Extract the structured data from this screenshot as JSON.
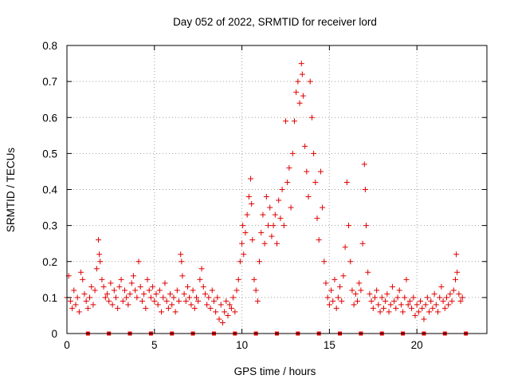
{
  "chart_data": {
    "type": "scatter",
    "title": "Day 052 of 2022, SRMTID for receiver lord",
    "xlabel": "GPS time / hours",
    "ylabel": "SRMTID / TECUs",
    "xlim": [
      0,
      24
    ],
    "ylim": [
      0,
      0.8
    ],
    "xticks": [
      0,
      5,
      10,
      15,
      20
    ],
    "xtick_labels": [
      "0",
      "5",
      "10",
      "15",
      "20"
    ],
    "yticks": [
      0,
      0.1,
      0.2,
      0.3,
      0.4,
      0.5,
      0.6,
      0.7,
      0.8
    ],
    "ytick_labels": [
      "0",
      "0.1",
      "0.2",
      "0.3",
      "0.4",
      "0.5",
      "0.6",
      "0.7",
      "0.8"
    ],
    "grid": true,
    "marker": "plus",
    "color": "#e00000",
    "series": [
      {
        "name": "SRMTID",
        "points": [
          [
            0.0,
            0.1
          ],
          [
            0.1,
            0.16
          ],
          [
            0.2,
            0.09
          ],
          [
            0.3,
            0.07
          ],
          [
            0.4,
            0.12
          ],
          [
            0.5,
            0.08
          ],
          [
            0.6,
            0.1
          ],
          [
            0.7,
            0.06
          ],
          [
            0.8,
            0.17
          ],
          [
            0.9,
            0.15
          ],
          [
            1.0,
            0.11
          ],
          [
            1.1,
            0.09
          ],
          [
            1.2,
            0.07
          ],
          [
            1.3,
            0.1
          ],
          [
            1.4,
            0.13
          ],
          [
            1.5,
            0.08
          ],
          [
            1.6,
            0.12
          ],
          [
            1.7,
            0.18
          ],
          [
            1.8,
            0.26
          ],
          [
            1.85,
            0.22
          ],
          [
            1.9,
            0.2
          ],
          [
            2.0,
            0.15
          ],
          [
            2.1,
            0.13
          ],
          [
            2.2,
            0.1
          ],
          [
            2.3,
            0.11
          ],
          [
            2.4,
            0.09
          ],
          [
            2.5,
            0.14
          ],
          [
            2.6,
            0.08
          ],
          [
            2.7,
            0.12
          ],
          [
            2.8,
            0.1
          ],
          [
            2.9,
            0.07
          ],
          [
            3.0,
            0.13
          ],
          [
            3.1,
            0.15
          ],
          [
            3.2,
            0.09
          ],
          [
            3.3,
            0.12
          ],
          [
            3.4,
            0.1
          ],
          [
            3.5,
            0.08
          ],
          [
            3.6,
            0.11
          ],
          [
            3.7,
            0.14
          ],
          [
            3.8,
            0.16
          ],
          [
            3.9,
            0.12
          ],
          [
            4.0,
            0.1
          ],
          [
            4.1,
            0.2
          ],
          [
            4.2,
            0.13
          ],
          [
            4.3,
            0.09
          ],
          [
            4.4,
            0.11
          ],
          [
            4.5,
            0.07
          ],
          [
            4.6,
            0.15
          ],
          [
            4.7,
            0.12
          ],
          [
            4.8,
            0.1
          ],
          [
            4.9,
            0.13
          ],
          [
            5.0,
            0.09
          ],
          [
            5.1,
            0.11
          ],
          [
            5.2,
            0.08
          ],
          [
            5.3,
            0.12
          ],
          [
            5.4,
            0.06
          ],
          [
            5.5,
            0.1
          ],
          [
            5.6,
            0.14
          ],
          [
            5.7,
            0.09
          ],
          [
            5.8,
            0.07
          ],
          [
            5.9,
            0.11
          ],
          [
            6.0,
            0.08
          ],
          [
            6.1,
            0.1
          ],
          [
            6.2,
            0.06
          ],
          [
            6.3,
            0.12
          ],
          [
            6.4,
            0.09
          ],
          [
            6.5,
            0.22
          ],
          [
            6.55,
            0.2
          ],
          [
            6.6,
            0.16
          ],
          [
            6.7,
            0.11
          ],
          [
            6.8,
            0.09
          ],
          [
            6.9,
            0.13
          ],
          [
            7.0,
            0.1
          ],
          [
            7.1,
            0.08
          ],
          [
            7.2,
            0.12
          ],
          [
            7.3,
            0.07
          ],
          [
            7.4,
            0.1
          ],
          [
            7.5,
            0.09
          ],
          [
            7.6,
            0.15
          ],
          [
            7.7,
            0.18
          ],
          [
            7.8,
            0.13
          ],
          [
            7.9,
            0.11
          ],
          [
            8.0,
            0.08
          ],
          [
            8.1,
            0.1
          ],
          [
            8.2,
            0.07
          ],
          [
            8.3,
            0.12
          ],
          [
            8.4,
            0.09
          ],
          [
            8.5,
            0.06
          ],
          [
            8.6,
            0.1
          ],
          [
            8.7,
            0.04
          ],
          [
            8.8,
            0.08
          ],
          [
            8.9,
            0.03
          ],
          [
            9.0,
            0.06
          ],
          [
            9.1,
            0.09
          ],
          [
            9.2,
            0.05
          ],
          [
            9.3,
            0.08
          ],
          [
            9.4,
            0.07
          ],
          [
            9.5,
            0.1
          ],
          [
            9.6,
            0.06
          ],
          [
            9.7,
            0.12
          ],
          [
            9.8,
            0.15
          ],
          [
            9.9,
            0.2
          ],
          [
            10.0,
            0.25
          ],
          [
            10.05,
            0.3
          ],
          [
            10.1,
            0.22
          ],
          [
            10.2,
            0.28
          ],
          [
            10.3,
            0.33
          ],
          [
            10.4,
            0.38
          ],
          [
            10.5,
            0.43
          ],
          [
            10.55,
            0.36
          ],
          [
            10.6,
            0.26
          ],
          [
            10.7,
            0.15
          ],
          [
            10.8,
            0.12
          ],
          [
            10.9,
            0.09
          ],
          [
            11.0,
            0.2
          ],
          [
            11.1,
            0.28
          ],
          [
            11.2,
            0.33
          ],
          [
            11.3,
            0.25
          ],
          [
            11.4,
            0.38
          ],
          [
            11.5,
            0.3
          ],
          [
            11.6,
            0.35
          ],
          [
            11.7,
            0.27
          ],
          [
            11.8,
            0.3
          ],
          [
            11.9,
            0.33
          ],
          [
            12.0,
            0.25
          ],
          [
            12.1,
            0.37
          ],
          [
            12.2,
            0.32
          ],
          [
            12.3,
            0.4
          ],
          [
            12.4,
            0.3
          ],
          [
            12.5,
            0.59
          ],
          [
            12.6,
            0.42
          ],
          [
            12.7,
            0.46
          ],
          [
            12.8,
            0.35
          ],
          [
            12.9,
            0.5
          ],
          [
            13.0,
            0.59
          ],
          [
            13.1,
            0.67
          ],
          [
            13.2,
            0.7
          ],
          [
            13.3,
            0.64
          ],
          [
            13.4,
            0.75
          ],
          [
            13.45,
            0.72
          ],
          [
            13.5,
            0.66
          ],
          [
            13.6,
            0.52
          ],
          [
            13.7,
            0.45
          ],
          [
            13.8,
            0.38
          ],
          [
            13.9,
            0.7
          ],
          [
            14.0,
            0.6
          ],
          [
            14.1,
            0.5
          ],
          [
            14.2,
            0.42
          ],
          [
            14.3,
            0.32
          ],
          [
            14.4,
            0.26
          ],
          [
            14.5,
            0.45
          ],
          [
            14.6,
            0.35
          ],
          [
            14.7,
            0.2
          ],
          [
            14.8,
            0.14
          ],
          [
            14.9,
            0.1
          ],
          [
            15.0,
            0.08
          ],
          [
            15.1,
            0.12
          ],
          [
            15.2,
            0.09
          ],
          [
            15.3,
            0.15
          ],
          [
            15.4,
            0.07
          ],
          [
            15.5,
            0.1
          ],
          [
            15.6,
            0.13
          ],
          [
            15.7,
            0.09
          ],
          [
            15.8,
            0.16
          ],
          [
            15.9,
            0.24
          ],
          [
            16.0,
            0.42
          ],
          [
            16.1,
            0.3
          ],
          [
            16.2,
            0.2
          ],
          [
            16.3,
            0.12
          ],
          [
            16.4,
            0.08
          ],
          [
            16.5,
            0.11
          ],
          [
            16.6,
            0.09
          ],
          [
            16.7,
            0.14
          ],
          [
            16.8,
            0.12
          ],
          [
            16.9,
            0.25
          ],
          [
            17.0,
            0.47
          ],
          [
            17.05,
            0.4
          ],
          [
            17.1,
            0.3
          ],
          [
            17.2,
            0.17
          ],
          [
            17.3,
            0.11
          ],
          [
            17.4,
            0.09
          ],
          [
            17.5,
            0.07
          ],
          [
            17.6,
            0.1
          ],
          [
            17.7,
            0.12
          ],
          [
            17.8,
            0.08
          ],
          [
            17.9,
            0.06
          ],
          [
            18.0,
            0.1
          ],
          [
            18.1,
            0.07
          ],
          [
            18.2,
            0.09
          ],
          [
            18.3,
            0.11
          ],
          [
            18.4,
            0.06
          ],
          [
            18.5,
            0.08
          ],
          [
            18.6,
            0.13
          ],
          [
            18.7,
            0.09
          ],
          [
            18.8,
            0.07
          ],
          [
            18.9,
            0.1
          ],
          [
            19.0,
            0.12
          ],
          [
            19.1,
            0.08
          ],
          [
            19.2,
            0.06
          ],
          [
            19.3,
            0.1
          ],
          [
            19.4,
            0.15
          ],
          [
            19.5,
            0.08
          ],
          [
            19.6,
            0.09
          ],
          [
            19.7,
            0.07
          ],
          [
            19.8,
            0.1
          ],
          [
            19.9,
            0.05
          ],
          [
            20.0,
            0.08
          ],
          [
            20.1,
            0.06
          ],
          [
            20.2,
            0.09
          ],
          [
            20.3,
            0.07
          ],
          [
            20.4,
            0.04
          ],
          [
            20.5,
            0.08
          ],
          [
            20.6,
            0.1
          ],
          [
            20.7,
            0.06
          ],
          [
            20.8,
            0.09
          ],
          [
            20.9,
            0.07
          ],
          [
            21.0,
            0.11
          ],
          [
            21.1,
            0.08
          ],
          [
            21.2,
            0.06
          ],
          [
            21.3,
            0.1
          ],
          [
            21.4,
            0.13
          ],
          [
            21.5,
            0.09
          ],
          [
            21.6,
            0.07
          ],
          [
            21.7,
            0.1
          ],
          [
            21.8,
            0.08
          ],
          [
            21.9,
            0.11
          ],
          [
            22.0,
            0.09
          ],
          [
            22.1,
            0.12
          ],
          [
            22.2,
            0.15
          ],
          [
            22.25,
            0.22
          ],
          [
            22.3,
            0.17
          ],
          [
            22.4,
            0.11
          ],
          [
            22.5,
            0.09
          ],
          [
            22.6,
            0.1
          ]
        ]
      }
    ],
    "baseline_markers": {
      "name": "satellite-arc markers",
      "y": 0,
      "x": [
        1.2,
        2.4,
        3.6,
        4.8,
        6.0,
        7.2,
        8.4,
        9.6,
        10.8,
        12.0,
        13.2,
        14.4,
        15.6,
        16.8,
        18.0,
        19.2,
        20.4,
        21.6,
        22.8
      ]
    }
  }
}
